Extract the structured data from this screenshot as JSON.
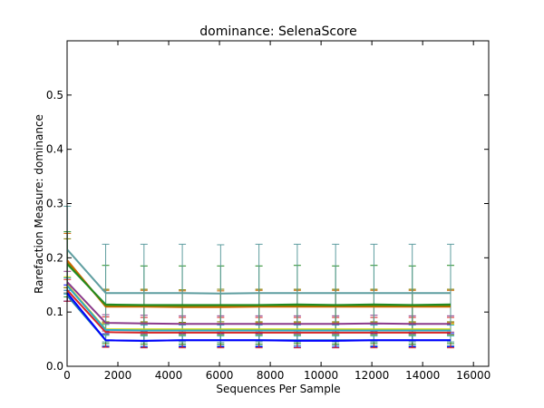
{
  "chart_data": {
    "type": "line",
    "title": "dominance: SelenaScore",
    "xlabel": "Sequences Per Sample",
    "ylabel": "Rarefaction Measure: dominance",
    "xlim": [
      0,
      16600
    ],
    "ylim": [
      0.0,
      0.6
    ],
    "x_ticks": [
      0,
      2000,
      4000,
      6000,
      8000,
      10000,
      12000,
      14000,
      16000
    ],
    "y_ticks": [
      0.0,
      0.1,
      0.2,
      0.3,
      0.4,
      0.5
    ],
    "x": [
      10,
      1519,
      3028,
      4537,
      6046,
      7555,
      9064,
      10573,
      12082,
      13591,
      15100
    ],
    "grid": false,
    "legend": "none",
    "series": [
      {
        "color": "#1f77b4",
        "values": [
          0.13,
          0.048,
          0.047,
          0.048,
          0.048,
          0.048,
          0.048,
          0.048,
          0.048,
          0.048,
          0.048
        ],
        "error": [
          0.01,
          0.01,
          0.01,
          0.01,
          0.01,
          0.01,
          0.01,
          0.01,
          0.01,
          0.01,
          0.01
        ]
      },
      {
        "color": "#0000ff",
        "values": [
          0.135,
          0.048,
          0.047,
          0.048,
          0.048,
          0.048,
          0.047,
          0.047,
          0.048,
          0.048,
          0.048
        ],
        "error": [
          0.015,
          0.012,
          0.012,
          0.012,
          0.012,
          0.012,
          0.012,
          0.012,
          0.012,
          0.012,
          0.012
        ]
      },
      {
        "color": "#d62728",
        "values": [
          0.14,
          0.063,
          0.062,
          0.062,
          0.062,
          0.062,
          0.062,
          0.062,
          0.062,
          0.062,
          0.062
        ],
        "error": [
          0.02,
          0.028,
          0.028,
          0.028,
          0.028,
          0.028,
          0.028,
          0.028,
          0.028,
          0.028,
          0.028
        ]
      },
      {
        "color": "#d4d400",
        "values": [
          0.15,
          0.068,
          0.068,
          0.068,
          0.068,
          0.068,
          0.068,
          0.068,
          0.068,
          0.068,
          0.068
        ],
        "error": [
          0.015,
          0.01,
          0.01,
          0.01,
          0.01,
          0.01,
          0.01,
          0.01,
          0.01,
          0.01,
          0.01
        ]
      },
      {
        "color": "#2ca8c8",
        "values": [
          0.148,
          0.067,
          0.066,
          0.066,
          0.066,
          0.066,
          0.066,
          0.066,
          0.066,
          0.066,
          0.066
        ],
        "error": [
          0.015,
          0.01,
          0.01,
          0.01,
          0.01,
          0.01,
          0.01,
          0.01,
          0.01,
          0.01,
          0.01
        ]
      },
      {
        "color": "#8b3a8b",
        "values": [
          0.155,
          0.08,
          0.079,
          0.078,
          0.078,
          0.078,
          0.078,
          0.078,
          0.079,
          0.078,
          0.078
        ],
        "error": [
          0.02,
          0.015,
          0.015,
          0.015,
          0.015,
          0.015,
          0.015,
          0.015,
          0.015,
          0.015,
          0.015
        ]
      },
      {
        "color": "#cc6600",
        "values": [
          0.195,
          0.11,
          0.11,
          0.109,
          0.109,
          0.11,
          0.11,
          0.11,
          0.11,
          0.11,
          0.11
        ],
        "error": [
          0.05,
          0.03,
          0.03,
          0.03,
          0.03,
          0.03,
          0.03,
          0.03,
          0.03,
          0.03,
          0.03
        ]
      },
      {
        "color": "#808000",
        "values": [
          0.19,
          0.112,
          0.112,
          0.111,
          0.112,
          0.112,
          0.112,
          0.112,
          0.112,
          0.112,
          0.112
        ],
        "error": [
          0.045,
          0.03,
          0.03,
          0.03,
          0.03,
          0.03,
          0.03,
          0.03,
          0.03,
          0.03,
          0.03
        ]
      },
      {
        "color": "#228b22",
        "values": [
          0.188,
          0.114,
          0.113,
          0.113,
          0.113,
          0.113,
          0.114,
          0.113,
          0.114,
          0.113,
          0.114
        ],
        "error": [
          0.06,
          0.072,
          0.072,
          0.072,
          0.072,
          0.072,
          0.072,
          0.072,
          0.072,
          0.072,
          0.072
        ]
      },
      {
        "color": "#5f9ea0",
        "values": [
          0.215,
          0.135,
          0.135,
          0.135,
          0.134,
          0.135,
          0.135,
          0.135,
          0.135,
          0.135,
          0.135
        ],
        "error": [
          0.08,
          0.09,
          0.09,
          0.09,
          0.09,
          0.09,
          0.09,
          0.09,
          0.09,
          0.09,
          0.09
        ]
      }
    ]
  }
}
